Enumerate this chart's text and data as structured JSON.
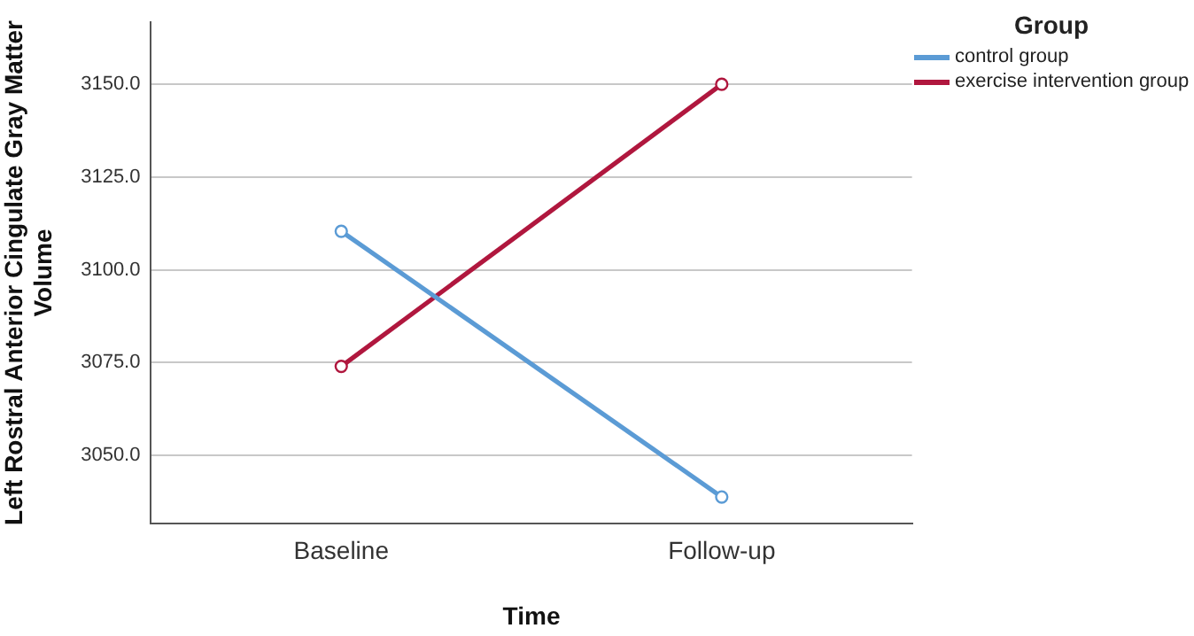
{
  "chart_data": {
    "type": "line",
    "xlabel": "Time",
    "ylabel": "Left Rostral Anterior Cingulate Gray Matter Volume",
    "legend_title": "Group",
    "categories": [
      "Baseline",
      "Follow-up"
    ],
    "series": [
      {
        "name": "control group",
        "color": "#5b9bd5",
        "values": [
          3110.4,
          3038.8
        ]
      },
      {
        "name": "exercise intervention group",
        "color": "#b0173e",
        "values": [
          3074,
          3150
        ]
      }
    ],
    "ylim": [
      3031.7,
      3166.7
    ],
    "yticks": [
      {
        "value": 3050,
        "label": "3050.0"
      },
      {
        "value": 3075,
        "label": "3075.0"
      },
      {
        "value": 3100,
        "label": "3100.0"
      },
      {
        "value": 3125,
        "label": "3125.0"
      },
      {
        "value": 3150,
        "label": "3150.0"
      }
    ],
    "grid": "y",
    "legend": "top right",
    "marker": "circle",
    "line_style": "solid"
  }
}
